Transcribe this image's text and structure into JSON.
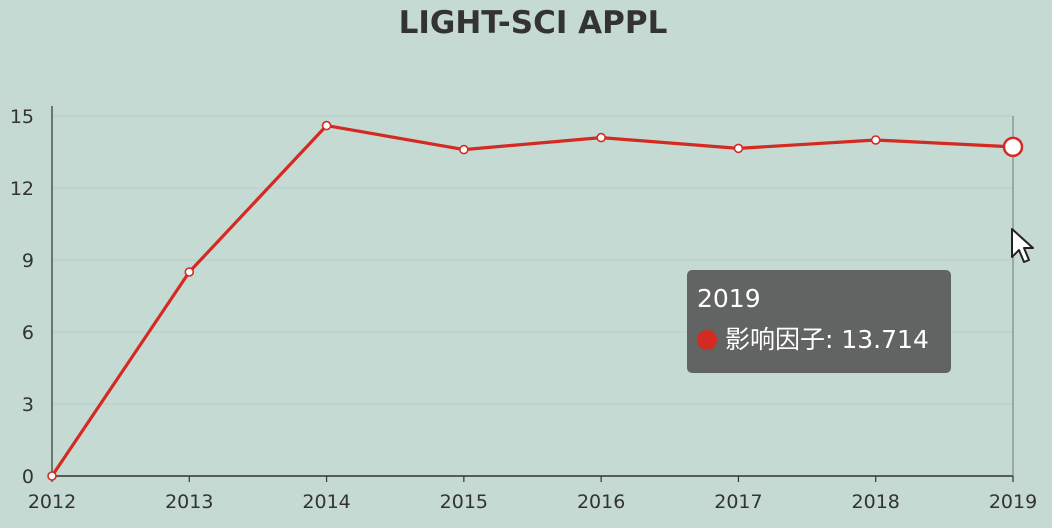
{
  "colors": {
    "background": "#c5dad3",
    "line": "#d32a22",
    "axis": "#333333",
    "grid": "#b9cfc8",
    "tooltip_bg": "#5a5a5a"
  },
  "chart_data": {
    "type": "line",
    "title": "LIGHT-SCI APPL",
    "xlabel": "",
    "ylabel": "",
    "categories": [
      "2012",
      "2013",
      "2014",
      "2015",
      "2016",
      "2017",
      "2018",
      "2019"
    ],
    "series": [
      {
        "name": "影响因子",
        "values": [
          0,
          8.5,
          14.6,
          13.6,
          14.1,
          13.65,
          14.0,
          13.714
        ]
      }
    ],
    "yticks": [
      0,
      3,
      6,
      9,
      12,
      15
    ],
    "ylim": [
      0,
      15
    ],
    "grid": true,
    "legend": "none",
    "highlighted_index": 7
  },
  "tooltip": {
    "title": "2019",
    "series_label": "影响因子",
    "value": "13.714",
    "row_text": "影响因子: 13.714"
  },
  "cursor": {
    "icon": "mouse-pointer-icon"
  }
}
